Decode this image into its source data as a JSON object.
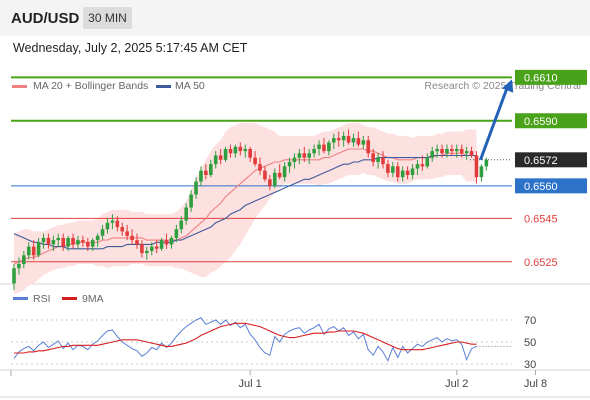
{
  "header": {
    "symbol": "AUD/USD",
    "timeframe": "30 MIN"
  },
  "datetime": "Wednesday, July 2, 2025 5:17:45 AM CET",
  "legend": {
    "ma20": "MA 20 + Bollinger Bands",
    "ma50": "MA 50"
  },
  "copyright": "Research © 2025 Trading Central",
  "colors": {
    "up": "#2e9e3e",
    "down": "#e23b3b",
    "ma20": "#ef8080",
    "ma50": "#3d5a99",
    "band": "#fde0e0",
    "target": "#4aa11a",
    "pivot": "#2d72c9",
    "support": "#e04040",
    "arrow": "#2461b8",
    "rsi": "#5b7fd6",
    "rsi_ma": "#d81f1f"
  },
  "chart_data": [
    {
      "type": "candlestick",
      "price_range": [
        0.6512,
        0.6618
      ],
      "levels": [
        {
          "label": "0.6610",
          "value": 0.661,
          "role": "target"
        },
        {
          "label": "0.6590",
          "value": 0.659,
          "role": "target"
        },
        {
          "label": "0.6572",
          "value": 0.6572,
          "role": "last"
        },
        {
          "label": "0.6560",
          "value": 0.656,
          "role": "pivot"
        },
        {
          "label": "0.6545",
          "value": 0.6545,
          "role": "support"
        },
        {
          "label": "0.6525",
          "value": 0.6525,
          "role": "support"
        }
      ],
      "x_labels": [
        "Jul 1",
        "Jul 2",
        "Jul 8"
      ],
      "x_label_index": [
        48,
        90,
        106
      ],
      "candles": [
        [
          0.6515,
          0.6524,
          0.6512,
          0.6522
        ],
        [
          0.6522,
          0.6527,
          0.6519,
          0.6524
        ],
        [
          0.6524,
          0.653,
          0.6522,
          0.6528
        ],
        [
          0.6528,
          0.6534,
          0.6526,
          0.6532
        ],
        [
          0.6532,
          0.6535,
          0.6526,
          0.6528
        ],
        [
          0.6528,
          0.6536,
          0.6527,
          0.6534
        ],
        [
          0.6534,
          0.6538,
          0.6531,
          0.6536
        ],
        [
          0.6536,
          0.6538,
          0.6531,
          0.6533
        ],
        [
          0.6533,
          0.6537,
          0.653,
          0.6535
        ],
        [
          0.6535,
          0.6538,
          0.6532,
          0.6536
        ],
        [
          0.6536,
          0.6538,
          0.653,
          0.6532
        ],
        [
          0.6532,
          0.6537,
          0.653,
          0.6536
        ],
        [
          0.6536,
          0.6538,
          0.6531,
          0.6533
        ],
        [
          0.6533,
          0.6537,
          0.6531,
          0.6535
        ],
        [
          0.6535,
          0.6537,
          0.6532,
          0.6534
        ],
        [
          0.6534,
          0.6536,
          0.653,
          0.6532
        ],
        [
          0.6532,
          0.6536,
          0.653,
          0.6535
        ],
        [
          0.6535,
          0.6538,
          0.6532,
          0.6537
        ],
        [
          0.6537,
          0.6542,
          0.6535,
          0.654
        ],
        [
          0.654,
          0.6545,
          0.6538,
          0.6543
        ],
        [
          0.6543,
          0.6547,
          0.654,
          0.6544
        ],
        [
          0.6544,
          0.6546,
          0.6539,
          0.6541
        ],
        [
          0.6541,
          0.6543,
          0.6537,
          0.6539
        ],
        [
          0.6539,
          0.6542,
          0.6535,
          0.6537
        ],
        [
          0.6537,
          0.654,
          0.6533,
          0.6535
        ],
        [
          0.6535,
          0.6538,
          0.6531,
          0.6533
        ],
        [
          0.6533,
          0.6535,
          0.6527,
          0.6529
        ],
        [
          0.6529,
          0.6532,
          0.6526,
          0.653
        ],
        [
          0.653,
          0.6534,
          0.6528,
          0.6532
        ],
        [
          0.6532,
          0.6535,
          0.6529,
          0.6531
        ],
        [
          0.6531,
          0.6536,
          0.653,
          0.6535
        ],
        [
          0.6535,
          0.6538,
          0.6531,
          0.6533
        ],
        [
          0.6533,
          0.6537,
          0.6531,
          0.6536
        ],
        [
          0.6536,
          0.6542,
          0.6534,
          0.654
        ],
        [
          0.654,
          0.6546,
          0.6538,
          0.6544
        ],
        [
          0.6544,
          0.6552,
          0.6542,
          0.655
        ],
        [
          0.655,
          0.6558,
          0.6548,
          0.6556
        ],
        [
          0.6556,
          0.6564,
          0.6554,
          0.6562
        ],
        [
          0.6562,
          0.6569,
          0.656,
          0.6567
        ],
        [
          0.6567,
          0.657,
          0.6563,
          0.6565
        ],
        [
          0.6565,
          0.6572,
          0.6564,
          0.657
        ],
        [
          0.657,
          0.6576,
          0.6568,
          0.6574
        ],
        [
          0.6574,
          0.6577,
          0.657,
          0.6572
        ],
        [
          0.6572,
          0.6578,
          0.6571,
          0.6577
        ],
        [
          0.6577,
          0.6579,
          0.6573,
          0.6575
        ],
        [
          0.6575,
          0.6579,
          0.6573,
          0.6578
        ],
        [
          0.6578,
          0.658,
          0.6574,
          0.6576
        ],
        [
          0.6576,
          0.6579,
          0.6573,
          0.6577
        ],
        [
          0.6577,
          0.6578,
          0.6571,
          0.6573
        ],
        [
          0.6573,
          0.6576,
          0.6569,
          0.657
        ],
        [
          0.657,
          0.6573,
          0.6565,
          0.6567
        ],
        [
          0.6567,
          0.6569,
          0.6562,
          0.6563
        ],
        [
          0.6563,
          0.6565,
          0.6558,
          0.656
        ],
        [
          0.656,
          0.6568,
          0.6559,
          0.6566
        ],
        [
          0.6566,
          0.657,
          0.6563,
          0.6564
        ],
        [
          0.6564,
          0.6571,
          0.6562,
          0.6569
        ],
        [
          0.6569,
          0.6573,
          0.6566,
          0.6571
        ],
        [
          0.6571,
          0.6575,
          0.6568,
          0.6573
        ],
        [
          0.6573,
          0.6577,
          0.657,
          0.6575
        ],
        [
          0.6575,
          0.6578,
          0.6571,
          0.6573
        ],
        [
          0.6573,
          0.6577,
          0.657,
          0.6575
        ],
        [
          0.6575,
          0.6579,
          0.6573,
          0.6577
        ],
        [
          0.6577,
          0.6581,
          0.6574,
          0.6579
        ],
        [
          0.6579,
          0.6582,
          0.6575,
          0.6576
        ],
        [
          0.6576,
          0.6581,
          0.6574,
          0.658
        ],
        [
          0.658,
          0.6584,
          0.6577,
          0.6582
        ],
        [
          0.6582,
          0.6585,
          0.6578,
          0.6581
        ],
        [
          0.6581,
          0.6585,
          0.6578,
          0.6583
        ],
        [
          0.6583,
          0.6586,
          0.6579,
          0.658
        ],
        [
          0.658,
          0.6584,
          0.6578,
          0.6582
        ],
        [
          0.6582,
          0.6585,
          0.6578,
          0.6579
        ],
        [
          0.6579,
          0.6583,
          0.6577,
          0.6581
        ],
        [
          0.6581,
          0.6583,
          0.6573,
          0.6575
        ],
        [
          0.6575,
          0.6577,
          0.6569,
          0.6571
        ],
        [
          0.6571,
          0.6575,
          0.6568,
          0.6573
        ],
        [
          0.6573,
          0.6576,
          0.6568,
          0.657
        ],
        [
          0.657,
          0.6572,
          0.6564,
          0.6566
        ],
        [
          0.6566,
          0.6571,
          0.6564,
          0.6569
        ],
        [
          0.6569,
          0.6571,
          0.6562,
          0.6564
        ],
        [
          0.6564,
          0.6569,
          0.6562,
          0.6567
        ],
        [
          0.6567,
          0.6569,
          0.6563,
          0.6565
        ],
        [
          0.6565,
          0.657,
          0.6563,
          0.6568
        ],
        [
          0.6568,
          0.6572,
          0.6565,
          0.657
        ],
        [
          0.657,
          0.6574,
          0.6567,
          0.6569
        ],
        [
          0.6569,
          0.6575,
          0.6568,
          0.6573
        ],
        [
          0.6573,
          0.6578,
          0.6571,
          0.6576
        ],
        [
          0.6576,
          0.6579,
          0.6573,
          0.6577
        ],
        [
          0.6577,
          0.6579,
          0.6573,
          0.6575
        ],
        [
          0.6575,
          0.6579,
          0.6573,
          0.6577
        ],
        [
          0.6577,
          0.6579,
          0.6574,
          0.6576
        ],
        [
          0.6576,
          0.6579,
          0.6573,
          0.6577
        ],
        [
          0.6577,
          0.6579,
          0.6573,
          0.6575
        ],
        [
          0.6575,
          0.6578,
          0.6572,
          0.6576
        ],
        [
          0.6576,
          0.6578,
          0.6573,
          0.6574
        ],
        [
          0.6574,
          0.6576,
          0.6561,
          0.6564
        ],
        [
          0.6564,
          0.657,
          0.6562,
          0.6569
        ],
        [
          0.6569,
          0.6573,
          0.6567,
          0.6572
        ]
      ],
      "ma20": [
        0.6524,
        0.6525,
        0.6526,
        0.6527,
        0.6527,
        0.6528,
        0.6529,
        0.653,
        0.6531,
        0.6532,
        0.6532,
        0.6533,
        0.6533,
        0.6534,
        0.6534,
        0.6534,
        0.6534,
        0.6534,
        0.6535,
        0.6535,
        0.6536,
        0.6536,
        0.6536,
        0.6536,
        0.6536,
        0.6536,
        0.6536,
        0.6535,
        0.6535,
        0.6535,
        0.6535,
        0.6535,
        0.6535,
        0.6535,
        0.6536,
        0.6537,
        0.6539,
        0.6541,
        0.6543,
        0.6545,
        0.6548,
        0.655,
        0.6552,
        0.6555,
        0.6557,
        0.6559,
        0.6561,
        0.6563,
        0.6565,
        0.6567,
        0.6568,
        0.6569,
        0.657,
        0.6571,
        0.6571,
        0.6572,
        0.6572,
        0.6572,
        0.6572,
        0.6572,
        0.6572,
        0.6572,
        0.6572,
        0.6573,
        0.6573,
        0.6574,
        0.6575,
        0.6576,
        0.6577,
        0.6577,
        0.6577,
        0.6577,
        0.6576,
        0.6576,
        0.6575,
        0.6574,
        0.6573,
        0.6573,
        0.6572,
        0.6572,
        0.6572,
        0.6572,
        0.6573,
        0.6573,
        0.6573,
        0.6573,
        0.6574,
        0.6574,
        0.6575,
        0.6575,
        0.6575,
        0.6575,
        0.6574,
        0.6574,
        0.6574
      ],
      "ma50": [
        0.6538,
        0.6537,
        0.6536,
        0.6535,
        0.6534,
        0.6534,
        0.6533,
        0.6533,
        0.6532,
        0.6532,
        0.6532,
        0.6531,
        0.6531,
        0.6531,
        0.6531,
        0.6531,
        0.6531,
        0.6531,
        0.6531,
        0.6532,
        0.6532,
        0.6532,
        0.6532,
        0.6533,
        0.6533,
        0.6533,
        0.6533,
        0.6533,
        0.6533,
        0.6534,
        0.6534,
        0.6534,
        0.6534,
        0.6535,
        0.6535,
        0.6536,
        0.6537,
        0.6538,
        0.6539,
        0.654,
        0.6541,
        0.6543,
        0.6544,
        0.6545,
        0.6547,
        0.6548,
        0.6549,
        0.6551,
        0.6552,
        0.6553,
        0.6554,
        0.6555,
        0.6556,
        0.6557,
        0.6558,
        0.6559,
        0.656,
        0.6561,
        0.6562,
        0.6563,
        0.6563,
        0.6564,
        0.6565,
        0.6566,
        0.6567,
        0.6568,
        0.6569,
        0.657,
        0.657,
        0.6571,
        0.6571,
        0.6572,
        0.6572,
        0.6572,
        0.6573,
        0.6573,
        0.6573,
        0.6573,
        0.6573,
        0.6573,
        0.6573,
        0.6573,
        0.6573,
        0.6573,
        0.6573,
        0.6574,
        0.6574,
        0.6574,
        0.6574,
        0.6574,
        0.6574,
        0.6574,
        0.6574,
        0.6574,
        0.6574
      ],
      "band_width": [
        0.0014,
        0.0014,
        0.0014,
        0.0013,
        0.0012,
        0.0011,
        0.001,
        0.001,
        0.001,
        0.001,
        0.001,
        0.001,
        0.001,
        0.001,
        0.001,
        0.001,
        0.001,
        0.0011,
        0.0012,
        0.0013,
        0.0013,
        0.0013,
        0.0013,
        0.0013,
        0.0012,
        0.0012,
        0.0012,
        0.0012,
        0.0012,
        0.0012,
        0.0012,
        0.0012,
        0.0012,
        0.0013,
        0.0014,
        0.0016,
        0.0019,
        0.0022,
        0.0025,
        0.0027,
        0.0028,
        0.0029,
        0.0029,
        0.003,
        0.003,
        0.0029,
        0.0028,
        0.0026,
        0.0024,
        0.0022,
        0.002,
        0.0018,
        0.0016,
        0.0014,
        0.0012,
        0.0011,
        0.0011,
        0.0011,
        0.0011,
        0.0011,
        0.0011,
        0.0011,
        0.0012,
        0.0012,
        0.0012,
        0.0012,
        0.0012,
        0.0012,
        0.0012,
        0.0012,
        0.0012,
        0.0011,
        0.0011,
        0.0011,
        0.0011,
        0.0011,
        0.0011,
        0.0011,
        0.0011,
        0.0011,
        0.0011,
        0.001,
        0.001,
        0.001,
        0.001,
        0.001,
        0.001,
        0.001,
        0.001,
        0.001,
        0.001,
        0.001,
        0.0012,
        0.0012,
        0.0012
      ],
      "projection": {
        "from": 0.6572,
        "to": 0.661
      }
    },
    {
      "type": "line",
      "legend": [
        "RSI",
        "9MA"
      ],
      "yticks": [
        70,
        50,
        30
      ],
      "ylim": [
        20,
        80
      ],
      "rsi": [
        35,
        41,
        44,
        46,
        42,
        47,
        50,
        45,
        48,
        51,
        44,
        49,
        43,
        47,
        46,
        43,
        48,
        51,
        56,
        60,
        61,
        55,
        50,
        47,
        44,
        42,
        37,
        40,
        45,
        43,
        49,
        45,
        49,
        55,
        60,
        64,
        67,
        70,
        72,
        66,
        68,
        70,
        66,
        70,
        65,
        68,
        63,
        66,
        57,
        52,
        45,
        40,
        38,
        55,
        50,
        57,
        60,
        62,
        63,
        58,
        61,
        63,
        66,
        57,
        62,
        64,
        60,
        63,
        56,
        59,
        53,
        57,
        43,
        38,
        46,
        41,
        33,
        45,
        36,
        46,
        40,
        44,
        48,
        46,
        50,
        52,
        54,
        50,
        53,
        51,
        52,
        48,
        34,
        44,
        46
      ],
      "rsi_ma": [
        40,
        40,
        40,
        41,
        41,
        42,
        42,
        43,
        44,
        45,
        46,
        46,
        47,
        47,
        47,
        47,
        47,
        47,
        48,
        49,
        50,
        51,
        52,
        52,
        52,
        52,
        51,
        50,
        49,
        48,
        47,
        46,
        46,
        47,
        48,
        49,
        51,
        53,
        56,
        58,
        60,
        62,
        64,
        65,
        66,
        67,
        67,
        67,
        66,
        65,
        64,
        62,
        60,
        58,
        56,
        55,
        54,
        54,
        55,
        56,
        57,
        58,
        58,
        58,
        59,
        59,
        60,
        60,
        60,
        60,
        59,
        58,
        56,
        54,
        52,
        50,
        48,
        46,
        44,
        43,
        43,
        43,
        43,
        43,
        44,
        45,
        46,
        47,
        48,
        49,
        50,
        50,
        49,
        48,
        48
      ]
    }
  ]
}
